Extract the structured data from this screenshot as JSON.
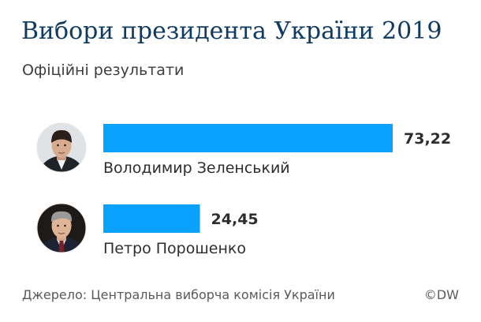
{
  "chart_data": {
    "type": "bar",
    "orientation": "horizontal",
    "title": "Вибори президента України 2019",
    "subtitle": "Офіційні результати",
    "categories": [
      "Володимир Зеленський",
      "Петро Порошенко"
    ],
    "values": [
      73.22,
      24.45
    ],
    "value_labels": [
      "73,22",
      "24,45"
    ],
    "xlim": [
      0,
      100
    ],
    "grid": false,
    "bar_color": "#0aa2ff",
    "icons": [
      "zelensky-portrait-icon",
      "poroshenko-portrait-icon"
    ]
  },
  "footer": {
    "source": "Джерело: Центральна виборча комісія України",
    "copyright": "©DW"
  }
}
